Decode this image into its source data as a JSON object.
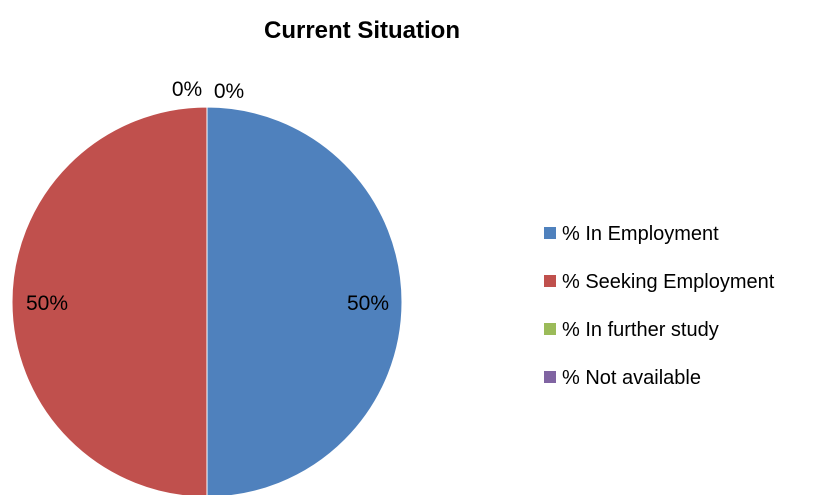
{
  "chart_data": {
    "type": "pie",
    "title": "Current Situation",
    "categories": [
      "% In Employment",
      "% Seeking Employment",
      "% In further study",
      "% Not available"
    ],
    "values": [
      50,
      50,
      0,
      0
    ],
    "data_labels": [
      "50%",
      "50%",
      "0%",
      "0%"
    ],
    "colors": [
      "#4F81BD",
      "#C0504D",
      "#9BBB59",
      "#8064A2"
    ],
    "legend_position": "right"
  }
}
